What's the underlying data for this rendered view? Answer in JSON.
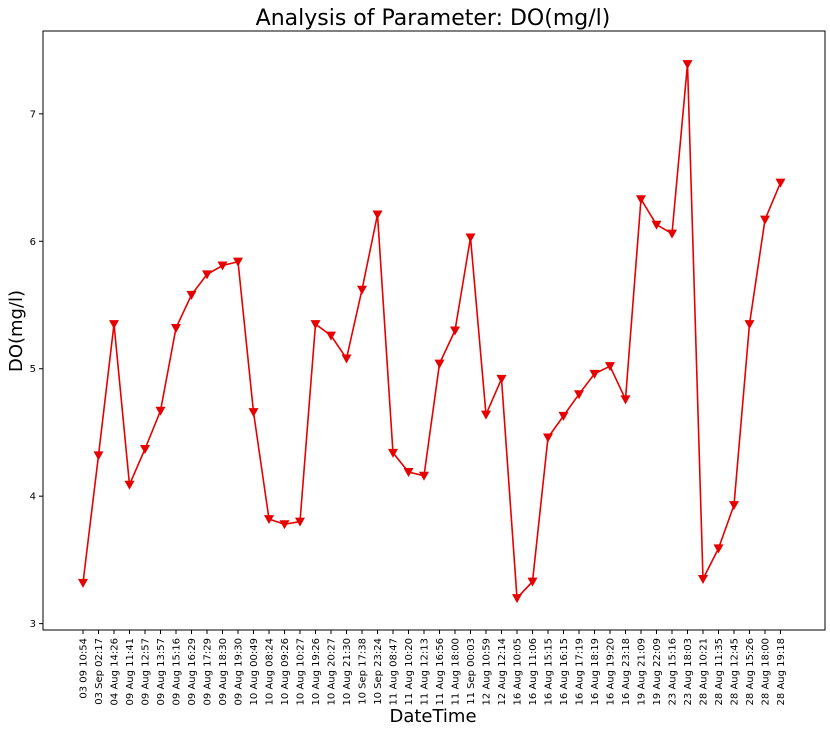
{
  "chart_data": {
    "type": "line",
    "title": "Analysis of Parameter: DO(mg/l)",
    "xlabel": "DateTime",
    "ylabel": "DO(mg/l)",
    "ylim": [
      2.95,
      7.65
    ],
    "yticks": [
      3,
      4,
      5,
      6,
      7
    ],
    "grid": false,
    "legend": "none",
    "colors": {
      "line": "#e60000",
      "marker": "#e60000"
    },
    "marker": "triangle-down",
    "categories": [
      "03 09 10:54",
      "03 Sep 02:17",
      "04 Aug 14:26",
      "09 Aug 11:41",
      "09 Aug 12:57",
      "09 Aug 13:57",
      "09 Aug 15:16",
      "09 Aug 16:29",
      "09 Aug 17:29",
      "09 Aug 18:30",
      "09 Aug 19:30",
      "10 Aug 00:49",
      "10 Aug 08:24",
      "10 Aug 09:26",
      "10 Aug 10:27",
      "10 Aug 19:26",
      "10 Aug 20:27",
      "10 Aug 21:30",
      "10 Sep 17:38",
      "10 Sep 23:24",
      "11 Aug 08:47",
      "11 Aug 10:20",
      "11 Aug 12:13",
      "11 Aug 16:56",
      "11 Aug 18:00",
      "11 Sep 00:03",
      "12 Aug 10:59",
      "12 Aug 12:14",
      "16 Aug 10:05",
      "16 Aug 11:06",
      "16 Aug 15:15",
      "16 Aug 16:15",
      "16 Aug 17:19",
      "16 Aug 18:19",
      "16 Aug 19:20",
      "16 Aug 23:18",
      "19 Aug 21:09",
      "19 Aug 22:09",
      "23 Aug 15:16",
      "23 Aug 18:03",
      "28 Aug 10:21",
      "28 Aug 11:35",
      "28 Aug 12:45",
      "28 Aug 15:26",
      "28 Aug 18:00",
      "28 Aug 19:18"
    ],
    "values": [
      3.32,
      4.32,
      5.35,
      4.09,
      4.37,
      4.67,
      5.32,
      5.58,
      5.74,
      5.81,
      5.84,
      4.66,
      3.82,
      3.78,
      3.8,
      5.35,
      5.26,
      5.08,
      5.62,
      6.21,
      4.34,
      4.19,
      4.16,
      5.04,
      5.3,
      6.03,
      4.64,
      4.92,
      3.2,
      3.33,
      4.46,
      4.63,
      4.8,
      4.96,
      5.02,
      4.76,
      6.33,
      6.13,
      6.06,
      7.39,
      3.35,
      3.59,
      3.93,
      5.35,
      6.17,
      6.46
    ]
  }
}
